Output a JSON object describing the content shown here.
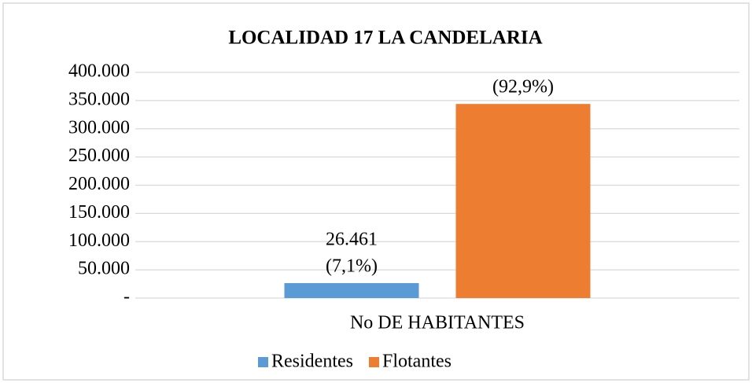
{
  "chart_data": {
    "type": "bar",
    "title": "LOCALIDAD 17 LA CANDELARIA",
    "categories": [
      "No DE HABITANTES"
    ],
    "series": [
      {
        "name": "Residentes",
        "color": "#5b9bd5",
        "values": [
          26461
        ],
        "value_labels": [
          [
            "26.461",
            "(7,1%)"
          ]
        ]
      },
      {
        "name": "Flotantes",
        "color": "#ed7d31",
        "values": [
          344000
        ],
        "value_labels": [
          [
            "(92,9%)"
          ]
        ]
      }
    ],
    "ylim": [
      0,
      400000
    ],
    "yticks": [
      {
        "value": 0,
        "label": "-"
      },
      {
        "value": 50000,
        "label": "50.000"
      },
      {
        "value": 100000,
        "label": "100.000"
      },
      {
        "value": 150000,
        "label": "150.000"
      },
      {
        "value": 200000,
        "label": "200.000"
      },
      {
        "value": 250000,
        "label": "250.000"
      },
      {
        "value": 300000,
        "label": "300.000"
      },
      {
        "value": 350000,
        "label": "350.000"
      },
      {
        "value": 400000,
        "label": "400.000"
      }
    ],
    "grid": true,
    "legend": "bottom"
  }
}
